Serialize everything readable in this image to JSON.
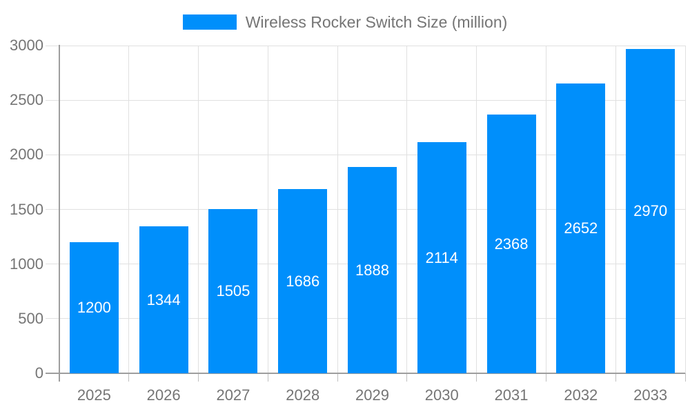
{
  "legend": {
    "label": "Wireless Rocker Switch Size (million)"
  },
  "chart_data": {
    "type": "bar",
    "title": "Wireless Rocker Switch Size (million)",
    "categories": [
      "2025",
      "2026",
      "2027",
      "2028",
      "2029",
      "2030",
      "2031",
      "2032",
      "2033"
    ],
    "values": [
      1200,
      1344,
      1505,
      1686,
      1888,
      2114,
      2368,
      2652,
      2970
    ],
    "series_name": "Wireless Rocker Switch Size (million)",
    "xlabel": "",
    "ylabel": "",
    "ylim": [
      0,
      3000
    ],
    "yticks": [
      0,
      500,
      1000,
      1500,
      2000,
      2500,
      3000
    ],
    "grid": true,
    "legend_position": "top",
    "data_labels": "inside-center",
    "colors": {
      "bar": "#008FFB",
      "axis_text": "#757575",
      "grid": "#e0e0e0",
      "axis_line": "#9e9e9e",
      "tick": "#c0c0c0",
      "data_label": "#ffffff",
      "background": "#ffffff"
    }
  }
}
